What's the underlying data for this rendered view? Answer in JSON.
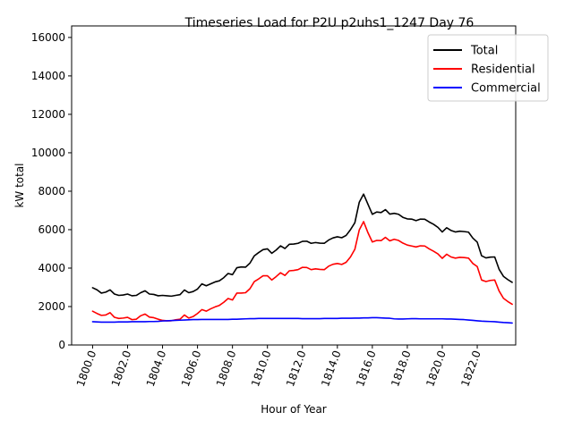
{
  "chart_data": {
    "type": "line",
    "title": "Timeseries Load for P2U p2uhs1_1247  Day 76",
    "xlabel": "Hour of Year",
    "ylabel": "kW total",
    "xlim": [
      1798.8,
      1824.2
    ],
    "ylim": [
      0,
      16600
    ],
    "xticks": [
      1800,
      1802,
      1804,
      1806,
      1808,
      1810,
      1812,
      1814,
      1816,
      1818,
      1820,
      1822
    ],
    "xtick_labels": [
      "1800.0",
      "1802.0",
      "1804.0",
      "1806.0",
      "1808.0",
      "1810.0",
      "1812.0",
      "1814.0",
      "1816.0",
      "1818.0",
      "1820.0",
      "1822.0"
    ],
    "yticks": [
      0,
      2000,
      4000,
      6000,
      8000,
      10000,
      12000,
      14000,
      16000
    ],
    "ytick_labels": [
      "0",
      "2000",
      "4000",
      "6000",
      "8000",
      "10000",
      "12000",
      "14000",
      "16000"
    ],
    "legend_location": "top-right",
    "grid": false,
    "x_start": 1800,
    "x_step": 0.25,
    "series": [
      {
        "name": "Total",
        "color": "#000000",
        "values": [
          2980,
          2870,
          2700,
          2750,
          2870,
          2650,
          2580,
          2600,
          2650,
          2560,
          2580,
          2720,
          2820,
          2650,
          2630,
          2560,
          2580,
          2560,
          2540,
          2580,
          2620,
          2860,
          2720,
          2780,
          2910,
          3180,
          3080,
          3180,
          3280,
          3340,
          3500,
          3720,
          3660,
          4020,
          4060,
          4050,
          4260,
          4640,
          4810,
          4960,
          5000,
          4770,
          4940,
          5160,
          5020,
          5240,
          5250,
          5290,
          5390,
          5400,
          5290,
          5330,
          5300,
          5290,
          5460,
          5570,
          5630,
          5580,
          5700,
          6000,
          6360,
          7420,
          7850,
          7320,
          6800,
          6920,
          6890,
          7040,
          6810,
          6850,
          6800,
          6640,
          6560,
          6550,
          6470,
          6550,
          6540,
          6400,
          6280,
          6120,
          5880,
          6100,
          5960,
          5880,
          5920,
          5900,
          5870,
          5560,
          5350,
          4640,
          4530,
          4570,
          4580,
          3940,
          3570,
          3400,
          3260
        ]
      },
      {
        "name": "Residential",
        "color": "#ff0000",
        "values": [
          1760,
          1640,
          1540,
          1560,
          1680,
          1440,
          1380,
          1400,
          1440,
          1320,
          1340,
          1520,
          1610,
          1450,
          1420,
          1340,
          1280,
          1260,
          1260,
          1310,
          1340,
          1560,
          1400,
          1480,
          1640,
          1840,
          1760,
          1880,
          1980,
          2060,
          2220,
          2420,
          2340,
          2700,
          2700,
          2720,
          2930,
          3300,
          3440,
          3600,
          3600,
          3380,
          3560,
          3760,
          3620,
          3860,
          3880,
          3920,
          4040,
          4030,
          3920,
          3960,
          3930,
          3920,
          4100,
          4200,
          4240,
          4190,
          4300,
          4580,
          4980,
          5980,
          6420,
          5840,
          5360,
          5440,
          5430,
          5600,
          5420,
          5500,
          5440,
          5300,
          5200,
          5150,
          5100,
          5160,
          5150,
          5000,
          4880,
          4740,
          4510,
          4720,
          4580,
          4520,
          4560,
          4550,
          4520,
          4240,
          4080,
          3380,
          3300,
          3360,
          3380,
          2810,
          2430,
          2260,
          2120
        ]
      },
      {
        "name": "Commercial",
        "color": "#0000ff",
        "values": [
          1210,
          1200,
          1190,
          1190,
          1190,
          1190,
          1200,
          1200,
          1200,
          1210,
          1210,
          1210,
          1210,
          1220,
          1220,
          1230,
          1250,
          1260,
          1270,
          1280,
          1290,
          1300,
          1310,
          1320,
          1320,
          1330,
          1330,
          1330,
          1330,
          1330,
          1330,
          1330,
          1340,
          1340,
          1350,
          1360,
          1370,
          1370,
          1380,
          1380,
          1380,
          1380,
          1380,
          1380,
          1380,
          1380,
          1380,
          1380,
          1370,
          1370,
          1370,
          1370,
          1370,
          1380,
          1380,
          1380,
          1380,
          1390,
          1390,
          1390,
          1400,
          1400,
          1410,
          1410,
          1420,
          1420,
          1410,
          1400,
          1390,
          1360,
          1350,
          1350,
          1360,
          1370,
          1370,
          1360,
          1360,
          1360,
          1360,
          1360,
          1360,
          1350,
          1350,
          1340,
          1330,
          1320,
          1300,
          1280,
          1260,
          1240,
          1230,
          1220,
          1210,
          1190,
          1170,
          1160,
          1140
        ]
      }
    ]
  }
}
